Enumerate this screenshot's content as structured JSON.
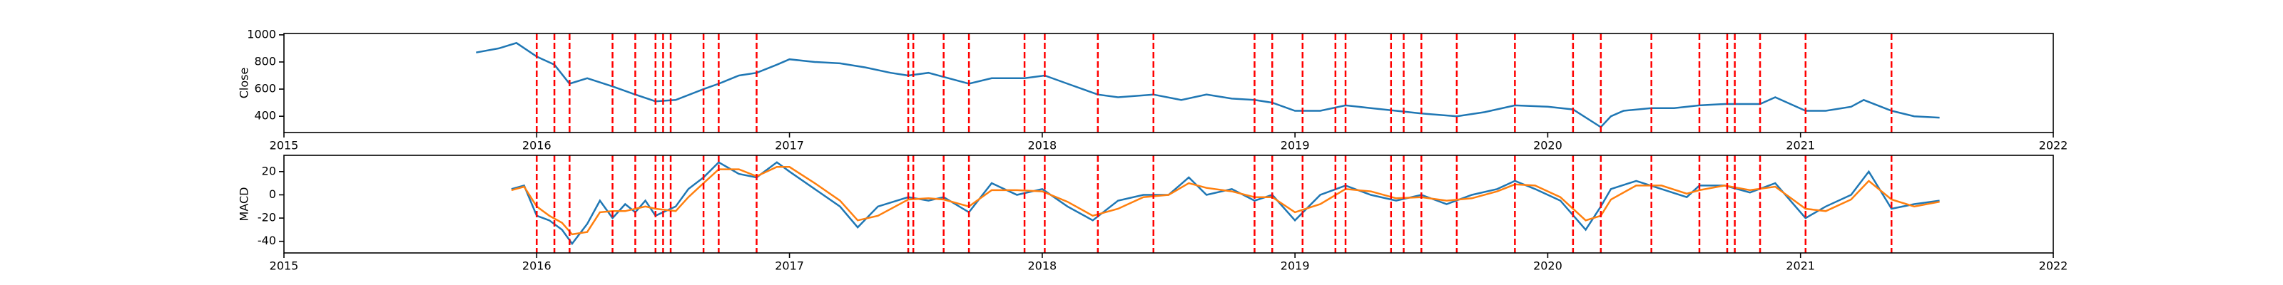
{
  "chart_data": [
    {
      "type": "line",
      "ylabel": "Close",
      "x": [
        2015.76,
        2015.85,
        2015.92,
        2016.0,
        2016.07,
        2016.13,
        2016.2,
        2016.3,
        2016.39,
        2016.47,
        2016.55,
        2016.66,
        2016.72,
        2016.8,
        2016.87,
        2016.95,
        2017.0,
        2017.1,
        2017.2,
        2017.3,
        2017.4,
        2017.47,
        2017.55,
        2017.61,
        2017.71,
        2017.8,
        2017.93,
        2018.01,
        2018.1,
        2018.22,
        2018.3,
        2018.44,
        2018.55,
        2018.65,
        2018.75,
        2018.84,
        2018.91,
        2019.0,
        2019.1,
        2019.2,
        2019.3,
        2019.4,
        2019.5,
        2019.64,
        2019.75,
        2019.87,
        2020.0,
        2020.1,
        2020.21,
        2020.25,
        2020.3,
        2020.41,
        2020.5,
        2020.6,
        2020.7,
        2020.84,
        2020.9,
        2021.02,
        2021.1,
        2021.2,
        2021.25,
        2021.36,
        2021.45,
        2021.55
      ],
      "series": [
        {
          "color": "#1f77b4",
          "values": [
            870,
            900,
            940,
            840,
            780,
            640,
            680,
            620,
            560,
            510,
            520,
            600,
            640,
            700,
            720,
            780,
            820,
            800,
            790,
            760,
            720,
            700,
            720,
            690,
            640,
            680,
            680,
            700,
            640,
            560,
            540,
            560,
            520,
            560,
            530,
            520,
            500,
            440,
            440,
            480,
            460,
            440,
            420,
            400,
            430,
            480,
            470,
            450,
            320,
            400,
            440,
            460,
            460,
            480,
            490,
            490,
            540,
            440,
            440,
            470,
            520,
            440,
            400,
            390
          ]
        }
      ],
      "xlim": [
        2015,
        2022
      ],
      "xticks": [
        2015,
        2016,
        2017,
        2018,
        2019,
        2020,
        2021,
        2022
      ],
      "ylim": [
        280,
        1010
      ],
      "yticks": [
        400,
        600,
        800,
        1000
      ],
      "vlines": {
        "color": "#ff0000",
        "x": [
          2016.0,
          2016.07,
          2016.13,
          2016.3,
          2016.39,
          2016.47,
          2016.5,
          2016.53,
          2016.66,
          2016.72,
          2016.87,
          2017.47,
          2017.49,
          2017.61,
          2017.71,
          2017.93,
          2018.01,
          2018.22,
          2018.44,
          2018.84,
          2018.91,
          2019.03,
          2019.16,
          2019.2,
          2019.38,
          2019.43,
          2019.5,
          2019.64,
          2019.87,
          2020.1,
          2020.21,
          2020.41,
          2020.6,
          2020.71,
          2020.74,
          2020.84,
          2021.02,
          2021.36
        ]
      }
    },
    {
      "type": "line",
      "ylabel": "MACD",
      "x": [
        2015.9,
        2015.95,
        2016.0,
        2016.05,
        2016.1,
        2016.14,
        2016.2,
        2016.25,
        2016.3,
        2016.35,
        2016.39,
        2016.43,
        2016.47,
        2016.55,
        2016.6,
        2016.66,
        2016.72,
        2016.8,
        2016.87,
        2016.95,
        2017.0,
        2017.1,
        2017.2,
        2017.27,
        2017.35,
        2017.47,
        2017.55,
        2017.61,
        2017.71,
        2017.8,
        2017.9,
        2018.0,
        2018.1,
        2018.2,
        2018.3,
        2018.4,
        2018.5,
        2018.58,
        2018.65,
        2018.75,
        2018.84,
        2018.91,
        2019.0,
        2019.1,
        2019.2,
        2019.3,
        2019.4,
        2019.5,
        2019.6,
        2019.7,
        2019.8,
        2019.87,
        2019.95,
        2020.05,
        2020.15,
        2020.21,
        2020.25,
        2020.35,
        2020.45,
        2020.55,
        2020.6,
        2020.7,
        2020.8,
        2020.9,
        2021.02,
        2021.1,
        2021.2,
        2021.27,
        2021.36,
        2021.45,
        2021.55
      ],
      "series": [
        {
          "color": "#1f77b4",
          "values": [
            5,
            8,
            -18,
            -22,
            -30,
            -42,
            -25,
            -5,
            -20,
            -8,
            -15,
            -5,
            -18,
            -10,
            5,
            15,
            28,
            18,
            15,
            28,
            20,
            5,
            -10,
            -28,
            -10,
            -2,
            -5,
            -2,
            -15,
            10,
            0,
            5,
            -10,
            -22,
            -5,
            0,
            0,
            15,
            0,
            5,
            -5,
            0,
            -22,
            0,
            8,
            0,
            -5,
            0,
            -8,
            0,
            5,
            12,
            5,
            -5,
            -30,
            -10,
            5,
            12,
            5,
            -2,
            8,
            8,
            2,
            10,
            -20,
            -10,
            0,
            20,
            -12,
            -8,
            -5
          ]
        },
        {
          "color": "#ff7f0e",
          "values": [
            4,
            7,
            -10,
            -18,
            -24,
            -34,
            -32,
            -15,
            -14,
            -14,
            -12,
            -10,
            -12,
            -14,
            -2,
            10,
            22,
            22,
            16,
            24,
            24,
            10,
            -5,
            -22,
            -18,
            -4,
            -3,
            -4,
            -10,
            4,
            4,
            3,
            -6,
            -18,
            -12,
            -2,
            0,
            10,
            6,
            3,
            -2,
            -2,
            -15,
            -8,
            5,
            3,
            -3,
            -2,
            -5,
            -3,
            3,
            9,
            8,
            -2,
            -22,
            -18,
            -4,
            8,
            8,
            1,
            4,
            8,
            4,
            7,
            -12,
            -14,
            -4,
            12,
            -4,
            -10,
            -6
          ]
        }
      ],
      "xlim": [
        2015,
        2022
      ],
      "xticks": [
        2015,
        2016,
        2017,
        2018,
        2019,
        2020,
        2021,
        2022
      ],
      "ylim": [
        -50,
        34
      ],
      "yticks": [
        -40,
        -20,
        0,
        20
      ],
      "vlines": {
        "color": "#ff0000",
        "x": [
          2016.0,
          2016.07,
          2016.13,
          2016.3,
          2016.39,
          2016.47,
          2016.5,
          2016.53,
          2016.66,
          2016.72,
          2016.87,
          2017.47,
          2017.49,
          2017.61,
          2017.71,
          2017.93,
          2018.01,
          2018.22,
          2018.44,
          2018.84,
          2018.91,
          2019.03,
          2019.16,
          2019.2,
          2019.38,
          2019.43,
          2019.5,
          2019.64,
          2019.87,
          2020.1,
          2020.21,
          2020.41,
          2020.6,
          2020.71,
          2020.74,
          2020.84,
          2021.02,
          2021.36
        ]
      }
    }
  ]
}
